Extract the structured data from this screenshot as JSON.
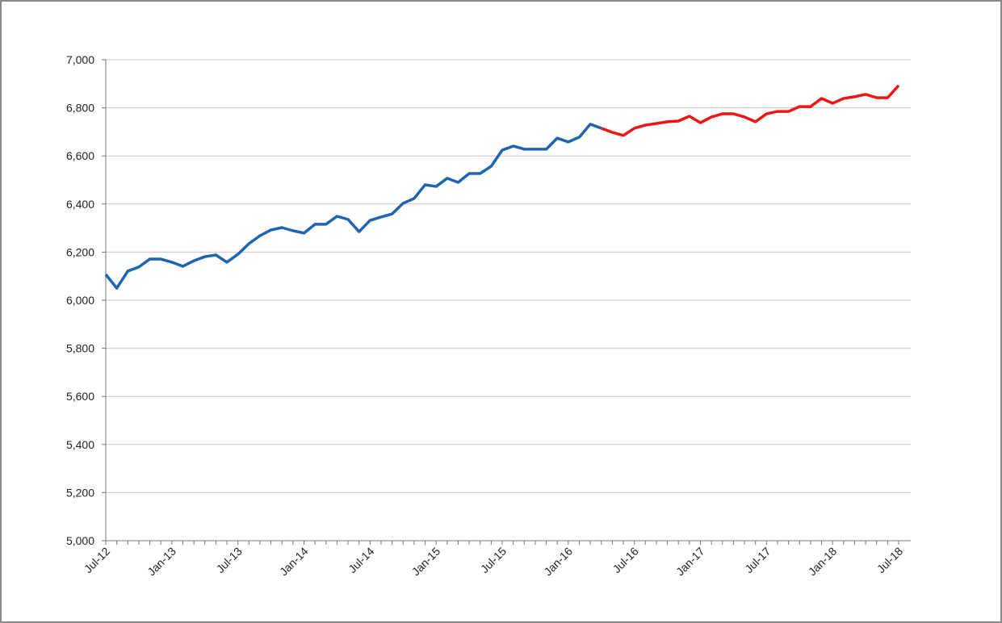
{
  "chart_data": {
    "type": "line",
    "categories": [
      "Jul-12",
      null,
      null,
      null,
      null,
      null,
      "Jan-13",
      null,
      null,
      null,
      null,
      null,
      "Jul-13",
      null,
      null,
      null,
      null,
      null,
      "Jan-14",
      null,
      null,
      null,
      null,
      null,
      "Jul-14",
      null,
      null,
      null,
      null,
      null,
      "Jan-15",
      null,
      null,
      null,
      null,
      null,
      "Jul-15",
      null,
      null,
      null,
      null,
      null,
      "Jan-16",
      null,
      null,
      null,
      null,
      null,
      "Jul-16",
      null,
      null,
      null,
      null,
      null,
      "Jan-17",
      null,
      null,
      null,
      null,
      null,
      "Jul-17",
      null,
      null,
      null,
      null,
      null,
      "Jan-18",
      null,
      null,
      null,
      null,
      null,
      "Jul-18"
    ],
    "series": [
      {
        "color": "#1f64b0",
        "values": [
          6107,
          6050,
          6121,
          6138,
          6171,
          6171,
          6158,
          6141,
          6164,
          6181,
          6188,
          6158,
          6191,
          6235,
          6268,
          6292,
          6302,
          6289,
          6279,
          6316,
          6316,
          6349,
          6336,
          6285,
          6332,
          6346,
          6359,
          6403,
          6423,
          6480,
          6473,
          6507,
          6490,
          6527,
          6527,
          6557,
          6624,
          6641,
          6628,
          6628,
          6628,
          6674,
          6658,
          6678,
          6732,
          6715,
          null,
          null,
          null,
          null,
          null,
          null,
          null,
          null,
          null,
          null,
          null,
          null,
          null,
          null,
          null,
          null,
          null,
          null,
          null,
          null,
          null,
          null,
          null,
          null,
          null,
          null,
          null
        ]
      },
      {
        "color": "#f01414",
        "values": [
          null,
          null,
          null,
          null,
          null,
          null,
          null,
          null,
          null,
          null,
          null,
          null,
          null,
          null,
          null,
          null,
          null,
          null,
          null,
          null,
          null,
          null,
          null,
          null,
          null,
          null,
          null,
          null,
          null,
          null,
          null,
          null,
          null,
          null,
          null,
          null,
          null,
          null,
          null,
          null,
          null,
          null,
          null,
          null,
          null,
          6715,
          6698,
          6685,
          6715,
          6728,
          6735,
          6742,
          6745,
          6765,
          6738,
          6762,
          6775,
          6775,
          6762,
          6742,
          6775,
          6785,
          6785,
          6805,
          6805,
          6839,
          6819,
          6839,
          6846,
          6856,
          6842,
          6842,
          6893
        ]
      }
    ],
    "ylim": [
      5000,
      7000
    ],
    "yticks": [
      {
        "value": 5000,
        "label": "5,000"
      },
      {
        "value": 5200,
        "label": "5,200"
      },
      {
        "value": 5400,
        "label": "5,400"
      },
      {
        "value": 5600,
        "label": "5,600"
      },
      {
        "value": 5800,
        "label": "5,800"
      },
      {
        "value": 6000,
        "label": "6,000"
      },
      {
        "value": 6200,
        "label": "6,200"
      },
      {
        "value": 6400,
        "label": "6,400"
      },
      {
        "value": 6600,
        "label": "6,600"
      },
      {
        "value": 6800,
        "label": "6,800"
      },
      {
        "value": 7000,
        "label": "7,000"
      }
    ],
    "grid": true
  }
}
